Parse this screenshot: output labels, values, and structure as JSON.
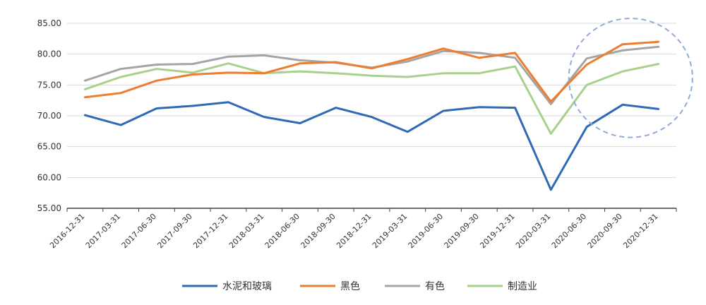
{
  "chart_data": {
    "type": "line",
    "title": "",
    "xlabel": "",
    "ylabel": "",
    "ylim": [
      55,
      85
    ],
    "yticks": [
      "55.00",
      "60.00",
      "65.00",
      "70.00",
      "75.00",
      "80.00",
      "85.00"
    ],
    "grid": true,
    "legend_position": "bottom",
    "categories": [
      "2016-12-31",
      "2017-03-31",
      "2017-06-30",
      "2017-09-30",
      "2017-12-31",
      "2018-03-31",
      "2018-06-30",
      "2018-09-30",
      "2018-12-31",
      "2019-03-31",
      "2019-06-30",
      "2019-09-30",
      "2019-12-31",
      "2020-03-31",
      "2020-06-30",
      "2020-09-30",
      "2020-12-31"
    ],
    "series": [
      {
        "name": "水泥和玻璃",
        "color": "#2e6ab5",
        "values": [
          70.1,
          68.5,
          71.2,
          71.6,
          72.2,
          69.8,
          68.8,
          71.3,
          69.8,
          67.4,
          70.8,
          71.4,
          71.3,
          58.0,
          68.2,
          71.8,
          71.1
        ]
      },
      {
        "name": "黑色",
        "color": "#ed7d31",
        "values": [
          73.0,
          73.7,
          75.7,
          76.7,
          77.0,
          76.9,
          78.5,
          78.7,
          77.7,
          79.2,
          80.9,
          79.4,
          80.2,
          72.3,
          78.3,
          81.6,
          82.0
        ]
      },
      {
        "name": "有色",
        "color": "#a5a5a5",
        "values": [
          75.7,
          77.6,
          78.3,
          78.4,
          79.6,
          79.8,
          79.0,
          78.6,
          77.8,
          78.8,
          80.5,
          80.2,
          79.4,
          71.9,
          79.3,
          80.6,
          81.2
        ]
      },
      {
        "name": "制造业",
        "color": "#a9d18e",
        "values": [
          74.3,
          76.3,
          77.6,
          77.0,
          78.5,
          76.9,
          77.2,
          76.9,
          76.5,
          76.3,
          76.9,
          76.9,
          78.0,
          67.1,
          75.0,
          77.2,
          78.4
        ]
      }
    ],
    "annotations": [
      {
        "type": "dashed-ellipse",
        "color": "#8faadc",
        "x_from": "2020-06-30",
        "x_to": "2020-12-31",
        "y_from": 66.5,
        "y_to": 85.8
      }
    ]
  }
}
